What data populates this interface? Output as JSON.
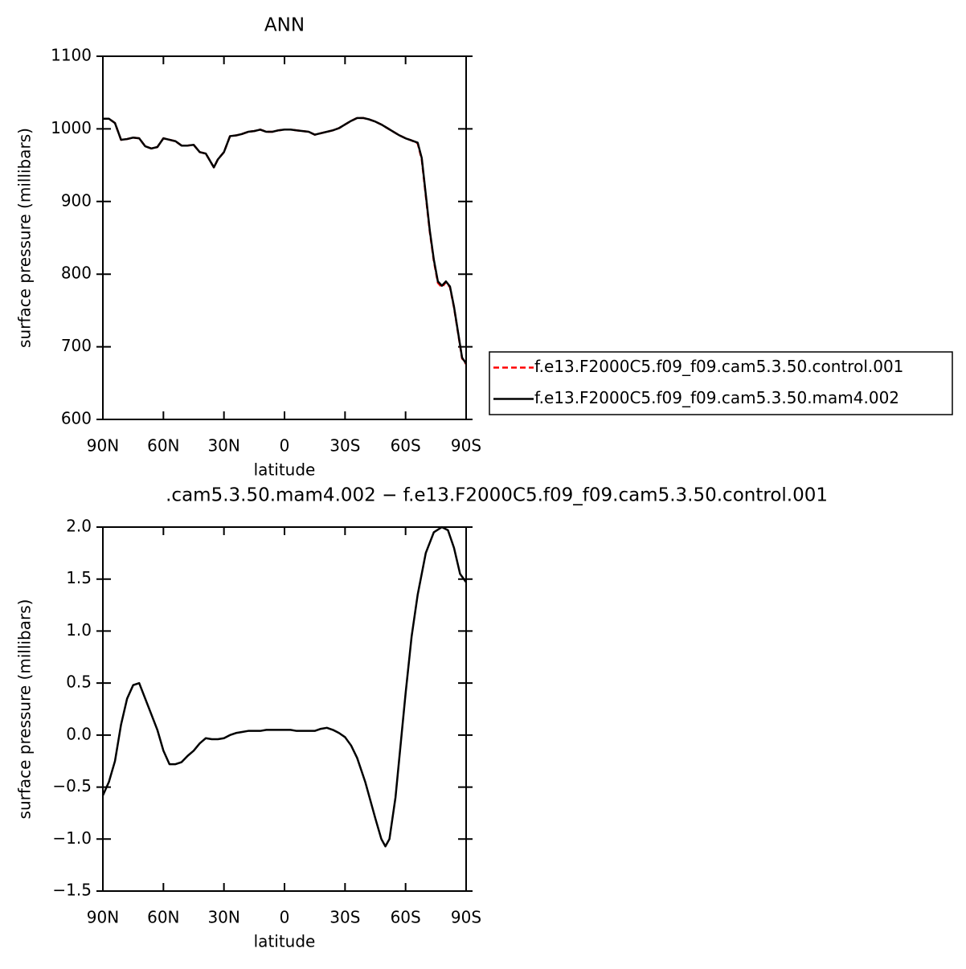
{
  "chart_data": [
    {
      "type": "line",
      "title": "ANN",
      "x_label": "latitude",
      "y_label": "surface pressure (millibars)",
      "x": [
        90,
        87,
        84,
        81,
        78,
        75,
        72,
        69,
        66,
        63,
        60,
        57,
        54,
        51,
        48,
        45,
        42,
        39,
        35,
        33,
        30,
        27,
        24,
        21,
        18,
        15,
        12,
        9,
        6,
        3,
        0,
        -3,
        -6,
        -9,
        -12,
        -15,
        -18,
        -21,
        -24,
        -27,
        -30,
        -33,
        -36,
        -39,
        -42,
        -45,
        -48,
        -51,
        -54,
        -57,
        -60,
        -63,
        -66,
        -68,
        -70,
        -72,
        -74,
        -76,
        -78,
        -80,
        -82,
        -84,
        -86,
        -88,
        -90
      ],
      "series": [
        {
          "name": "f.e13.F2000C5.f09_f09.cam5.3.50.control.001",
          "color": "#ff0000",
          "dash": true,
          "values": [
            1014,
            1014,
            1008,
            985,
            986,
            988,
            987,
            976,
            973,
            975,
            987,
            985,
            983,
            977,
            977,
            978,
            968,
            966,
            947,
            958,
            968,
            990,
            991,
            993,
            996,
            997,
            999,
            996,
            996,
            998,
            999,
            999,
            998,
            997,
            996,
            992,
            994,
            996,
            998,
            1001,
            1006,
            1011,
            1015,
            1015,
            1013,
            1010,
            1006,
            1001,
            996,
            991,
            987,
            984,
            980,
            958,
            908,
            858,
            818,
            788,
            782,
            789,
            782,
            754,
            719,
            684,
            676
          ]
        },
        {
          "name": "f.e13.F2000C5.f09_f09.cam5.3.50.mam4.002",
          "color": "#000000",
          "dash": false,
          "values": [
            1014,
            1014,
            1008,
            985,
            986,
            988,
            987,
            976,
            973,
            975,
            987,
            985,
            983,
            977,
            977,
            978,
            968,
            966,
            947,
            958,
            968,
            990,
            991,
            993,
            996,
            997,
            999,
            996,
            996,
            998,
            999,
            999,
            998,
            997,
            996,
            992,
            994,
            996,
            998,
            1001,
            1006,
            1011,
            1015,
            1015,
            1013,
            1010,
            1006,
            1001,
            996,
            991,
            987,
            984,
            981,
            960,
            910,
            860,
            820,
            790,
            784,
            790,
            783,
            755,
            720,
            685,
            677
          ]
        }
      ],
      "xlim": [
        90,
        -90
      ],
      "xticks": [
        {
          "value": 90,
          "label": "90N"
        },
        {
          "value": 60,
          "label": "60N"
        },
        {
          "value": 30,
          "label": "30N"
        },
        0,
        {
          "value": -30,
          "label": "30S"
        },
        {
          "value": -60,
          "label": "60S"
        },
        {
          "value": -90,
          "label": "90S"
        }
      ],
      "ylim": [
        600,
        1100
      ],
      "yticks": [
        600,
        700,
        800,
        900,
        1000,
        1100
      ]
    },
    {
      "type": "line",
      "title": ".cam5.3.50.mam4.002 − f.e13.F2000C5.f09_f09.cam5.3.50.control.001",
      "x_label": "latitude",
      "y_label": "surface pressure (millibars)",
      "x": [
        90,
        87,
        84,
        81,
        78,
        75,
        72,
        69,
        66,
        63,
        60,
        57,
        54,
        51,
        48,
        45,
        42,
        39,
        36,
        33,
        30,
        27,
        24,
        21,
        18,
        15,
        12,
        9,
        6,
        3,
        0,
        -3,
        -6,
        -9,
        -12,
        -15,
        -18,
        -21,
        -24,
        -27,
        -30,
        -33,
        -36,
        -40,
        -45,
        -48,
        -50,
        -52,
        -55,
        -58,
        -60,
        -63,
        -66,
        -70,
        -74,
        -78,
        -81,
        -84,
        -87,
        -90
      ],
      "color": "#000000",
      "values": [
        -0.58,
        -0.45,
        -0.25,
        0.1,
        0.35,
        0.48,
        0.5,
        0.35,
        0.2,
        0.05,
        -0.15,
        -0.28,
        -0.28,
        -0.26,
        -0.2,
        -0.15,
        -0.08,
        -0.03,
        -0.04,
        -0.04,
        -0.03,
        0.0,
        0.02,
        0.03,
        0.04,
        0.04,
        0.04,
        0.05,
        0.05,
        0.05,
        0.05,
        0.05,
        0.04,
        0.04,
        0.04,
        0.04,
        0.06,
        0.07,
        0.05,
        0.02,
        -0.02,
        -0.1,
        -0.22,
        -0.45,
        -0.8,
        -1.0,
        -1.07,
        -1.0,
        -0.6,
        0.0,
        0.4,
        0.95,
        1.35,
        1.75,
        1.95,
        2.0,
        1.97,
        1.8,
        1.55,
        1.47
      ],
      "xlim": [
        90,
        -90
      ],
      "xticks": [
        {
          "value": 90,
          "label": "90N"
        },
        {
          "value": 60,
          "label": "60N"
        },
        {
          "value": 30,
          "label": "30N"
        },
        0,
        {
          "value": -30,
          "label": "30S"
        },
        {
          "value": -60,
          "label": "60S"
        },
        {
          "value": -90,
          "label": "90S"
        }
      ],
      "ylim": [
        -1.5,
        2.0
      ],
      "yticks": [
        {
          "value": -1.5,
          "label": "−1.5"
        },
        {
          "value": -1.0,
          "label": "−1.0"
        },
        {
          "value": -0.5,
          "label": "−0.5"
        },
        {
          "value": 0.0,
          "label": "0.0"
        },
        0.5,
        {
          "value": 1.0,
          "label": "1.0"
        },
        1.5,
        {
          "value": 2.0,
          "label": "2.0"
        }
      ]
    }
  ]
}
